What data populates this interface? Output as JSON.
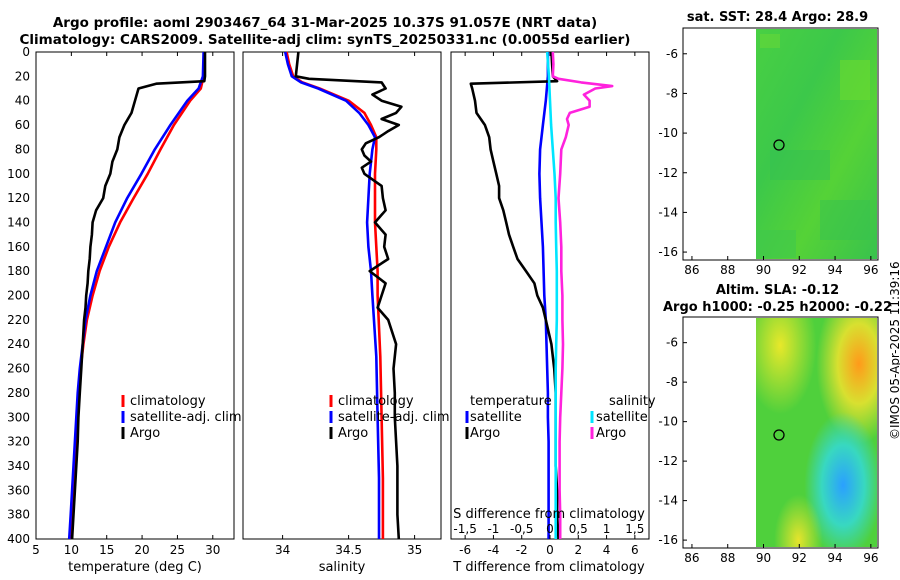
{
  "header": {
    "title_line1": "Argo profile: aoml 2903467_64 31-Mar-2025 10.37S 91.057E (NRT data)",
    "title_line2": "Climatology: CARS2009. Satellite-adj clim: synTS_20250331.nc (0.0055d earlier)"
  },
  "maps": {
    "sst_title": "sat. SST: 28.4 Argo: 28.9",
    "sla_title": "Altim. SLA: -0.12",
    "sla_subtitle": "Argo h1000: -0.25 h2000: -0.22",
    "lon_ticks": [
      "86",
      "88",
      "90",
      "92",
      "94",
      "96"
    ],
    "lat_ticks": [
      "-6",
      "-8",
      "-10",
      "-12",
      "-14",
      "-16"
    ],
    "argo_lon": 91.057,
    "argo_lat": -10.37
  },
  "watermark": "©IMOS 05-Apr-2025 11:39:16",
  "colors": {
    "climatology": "#ff0000",
    "satellite": "#0000ff",
    "argo": "#000000",
    "sal_sat": "#00e5ff",
    "sal_argo": "#ff22dd"
  },
  "chart_data": [
    {
      "type": "line",
      "name": "temperature-panel",
      "xlabel": "temperature (deg C)",
      "ylabel": "",
      "xlim": [
        5,
        33
      ],
      "ylim": [
        400,
        0
      ],
      "xticks": [
        5,
        10,
        15,
        20,
        25,
        30
      ],
      "yticks": [
        0,
        20,
        40,
        60,
        80,
        100,
        120,
        140,
        160,
        180,
        200,
        220,
        240,
        260,
        280,
        300,
        320,
        340,
        360,
        380,
        400
      ],
      "legend": [
        "climatology",
        "satellite-adj. clim",
        "Argo"
      ],
      "series": [
        {
          "name": "climatology",
          "depth": [
            0,
            20,
            30,
            40,
            60,
            80,
            100,
            120,
            140,
            160,
            180,
            200,
            220,
            240,
            260,
            280,
            300,
            320,
            340,
            360,
            380,
            400
          ],
          "values": [
            28.8,
            28.7,
            28.3,
            26.8,
            24.5,
            22.6,
            20.8,
            18.8,
            16.9,
            15.3,
            14.0,
            13.0,
            12.2,
            11.7,
            11.3,
            11.0,
            10.8,
            10.6,
            10.4,
            10.2,
            10.0,
            9.9
          ]
        },
        {
          "name": "satellite-adj. clim",
          "depth": [
            0,
            20,
            30,
            40,
            60,
            80,
            100,
            120,
            140,
            160,
            180,
            200,
            220,
            240,
            260,
            280,
            300,
            320,
            340,
            360,
            380,
            400
          ],
          "values": [
            28.7,
            28.6,
            28.0,
            26.4,
            24.0,
            21.8,
            19.9,
            17.9,
            16.2,
            14.9,
            13.6,
            12.7,
            12.0,
            11.6,
            11.2,
            10.9,
            10.7,
            10.5,
            10.3,
            10.1,
            9.9,
            9.7
          ]
        },
        {
          "name": "Argo",
          "depth": [
            0,
            20,
            24,
            26,
            30,
            40,
            50,
            60,
            70,
            80,
            90,
            100,
            110,
            120,
            130,
            140,
            150,
            160,
            170,
            180,
            190,
            200,
            210,
            220,
            240,
            260,
            280,
            300,
            320,
            340,
            360,
            380,
            400
          ],
          "values": [
            28.9,
            28.9,
            28.8,
            22.0,
            19.5,
            19.0,
            18.5,
            17.5,
            16.8,
            16.5,
            15.8,
            15.5,
            14.8,
            14.5,
            13.5,
            13.0,
            12.9,
            12.7,
            12.6,
            12.4,
            12.3,
            12.1,
            12.0,
            11.8,
            11.6,
            11.4,
            11.2,
            11.0,
            10.9,
            10.7,
            10.5,
            10.3,
            10.1
          ]
        }
      ]
    },
    {
      "type": "line",
      "name": "salinity-panel",
      "xlabel": "salinity",
      "ylabel": "",
      "xlim": [
        33.7,
        35.2
      ],
      "ylim": [
        400,
        0
      ],
      "xticks": [
        34,
        34.5,
        35
      ],
      "xticklabels": [
        "34",
        "34.5",
        "35"
      ],
      "legend": [
        "climatology",
        "satellite-adj. clim",
        "Argo"
      ],
      "series": [
        {
          "name": "climatology",
          "depth": [
            0,
            10,
            20,
            25,
            30,
            40,
            50,
            60,
            70,
            80,
            100,
            120,
            140,
            160,
            180,
            200,
            250,
            300,
            350,
            400
          ],
          "values": [
            34.03,
            34.05,
            34.08,
            34.15,
            34.28,
            34.5,
            34.62,
            34.67,
            34.71,
            34.71,
            34.7,
            34.7,
            34.7,
            34.71,
            34.72,
            34.72,
            34.74,
            34.75,
            34.76,
            34.76
          ]
        },
        {
          "name": "satellite-adj. clim",
          "depth": [
            0,
            10,
            20,
            25,
            30,
            40,
            50,
            60,
            70,
            80,
            100,
            120,
            140,
            160,
            180,
            200,
            250,
            300,
            350,
            400
          ],
          "values": [
            34.02,
            34.04,
            34.07,
            34.14,
            34.27,
            34.48,
            34.58,
            34.65,
            34.7,
            34.68,
            34.66,
            34.65,
            34.64,
            34.65,
            34.67,
            34.68,
            34.71,
            34.72,
            34.73,
            34.73
          ]
        },
        {
          "name": "Argo",
          "depth": [
            0,
            10,
            20,
            22,
            25,
            30,
            35,
            40,
            45,
            50,
            55,
            60,
            65,
            70,
            75,
            80,
            85,
            90,
            95,
            100,
            110,
            120,
            130,
            140,
            150,
            160,
            170,
            180,
            190,
            200,
            210,
            220,
            240,
            260,
            280,
            300,
            320,
            340,
            360,
            380,
            400
          ],
          "values": [
            34.12,
            34.11,
            34.1,
            34.2,
            34.75,
            34.78,
            34.68,
            34.75,
            34.9,
            34.86,
            34.75,
            34.88,
            34.8,
            34.73,
            34.63,
            34.6,
            34.62,
            34.67,
            34.6,
            34.62,
            34.75,
            34.76,
            34.78,
            34.7,
            34.78,
            34.77,
            34.8,
            34.66,
            34.78,
            34.75,
            34.72,
            34.8,
            34.86,
            34.84,
            34.85,
            34.85,
            34.86,
            34.87,
            34.87,
            34.87,
            34.88
          ]
        }
      ]
    },
    {
      "type": "line",
      "name": "difference-panel",
      "xlabel": "T difference from climatology",
      "top_axis_label": "S difference from climatology",
      "xlim": [
        -7,
        7
      ],
      "ylim": [
        400,
        0
      ],
      "xticks": [
        -6,
        -4,
        -2,
        0,
        2,
        4,
        6
      ],
      "top_xlim": [
        -1.75,
        1.75
      ],
      "top_xticks": [
        -1.5,
        -1,
        -0.5,
        0,
        0.5,
        1,
        1.5
      ],
      "legend_temperature": [
        "satellite",
        "Argo"
      ],
      "legend_salinity": [
        "satellite",
        "Argo"
      ],
      "legend_temperature_title": "temperature",
      "legend_salinity_title": "salinity",
      "series": [
        {
          "name": "T satellite",
          "depth": [
            0,
            20,
            40,
            60,
            80,
            100,
            120,
            140,
            160,
            180,
            200,
            220,
            240,
            260,
            280,
            300,
            320,
            340,
            360,
            380,
            400
          ],
          "values": [
            -0.15,
            -0.15,
            -0.3,
            -0.5,
            -0.7,
            -0.75,
            -0.7,
            -0.6,
            -0.5,
            -0.45,
            -0.4,
            -0.3,
            -0.25,
            -0.2,
            -0.15,
            -0.15,
            -0.1,
            -0.1,
            -0.1,
            -0.1,
            -0.1
          ]
        },
        {
          "name": "T Argo",
          "depth": [
            0,
            20,
            24,
            26,
            30,
            40,
            50,
            60,
            70,
            80,
            90,
            100,
            110,
            120,
            130,
            140,
            150,
            160,
            170,
            180,
            190,
            200,
            210,
            220,
            240,
            260,
            280,
            300,
            320,
            340,
            360,
            380,
            400
          ],
          "values": [
            0.1,
            0.2,
            0.5,
            -5.6,
            -5.5,
            -5.3,
            -5.2,
            -4.6,
            -4.3,
            -4.2,
            -4.0,
            -3.8,
            -3.6,
            -3.6,
            -3.3,
            -3.1,
            -2.9,
            -2.6,
            -2.3,
            -1.7,
            -1.1,
            -0.9,
            -0.5,
            -0.3,
            0.1,
            0.3,
            0.4,
            0.4,
            0.4,
            0.4,
            0.5,
            0.5,
            0.6
          ]
        },
        {
          "name": "S satellite",
          "depth": [
            0,
            20,
            40,
            60,
            80,
            100,
            120,
            140,
            160,
            180,
            200,
            220,
            240,
            260,
            280,
            300,
            320,
            340,
            360,
            380,
            400
          ],
          "values": [
            -0.05,
            -0.02,
            0.0,
            0.02,
            0.05,
            0.08,
            0.1,
            0.1,
            0.11,
            0.12,
            0.12,
            0.12,
            0.11,
            0.1,
            0.1,
            0.1,
            0.1,
            0.1,
            0.1,
            0.1,
            0.1
          ]
        },
        {
          "name": "S Argo",
          "depth": [
            0,
            10,
            20,
            22,
            25,
            28,
            30,
            35,
            40,
            45,
            50,
            55,
            60,
            70,
            80,
            100,
            120,
            140,
            160,
            180,
            200,
            220,
            240,
            260,
            280,
            300,
            320,
            340,
            360,
            380,
            400
          ],
          "values": [
            0.05,
            0.06,
            0.05,
            0.15,
            0.55,
            1.1,
            0.8,
            0.6,
            0.7,
            0.7,
            0.35,
            0.3,
            0.33,
            0.28,
            0.2,
            0.18,
            0.15,
            0.18,
            0.2,
            0.2,
            0.22,
            0.22,
            0.23,
            0.22,
            0.2,
            0.18,
            0.17,
            0.17,
            0.17,
            0.18,
            0.18
          ]
        }
      ]
    }
  ]
}
